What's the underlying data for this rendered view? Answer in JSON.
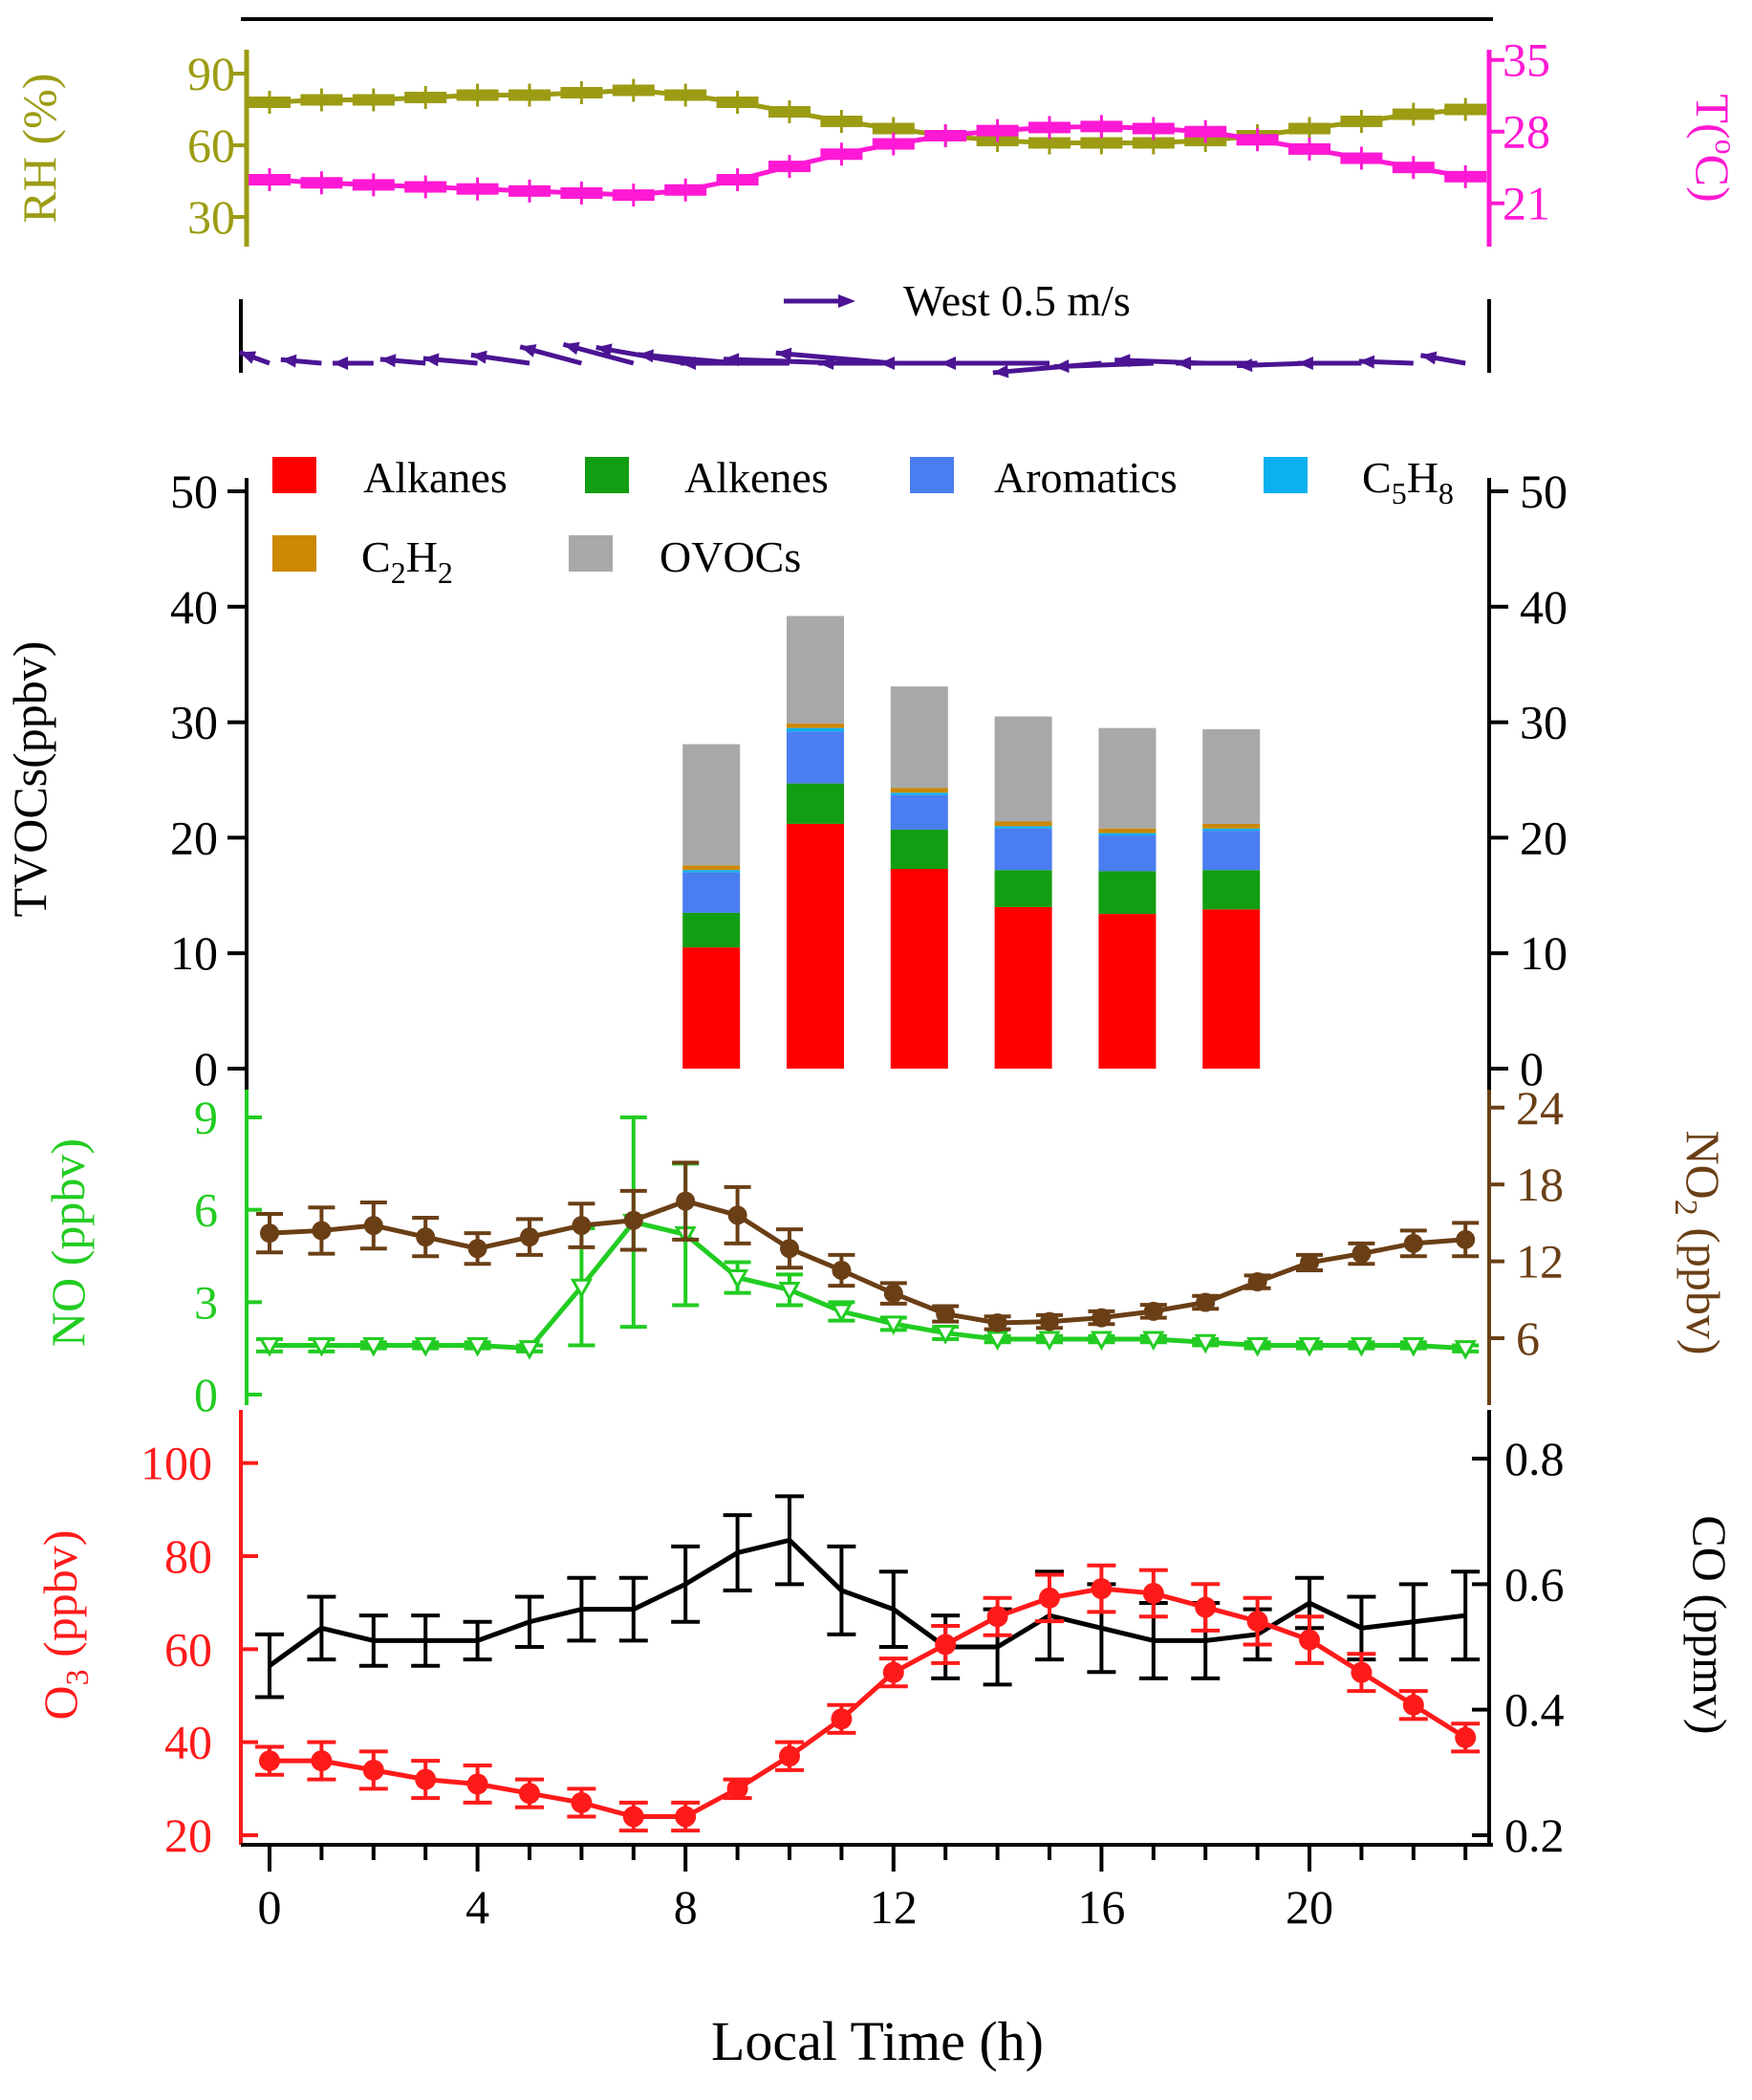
{
  "colors": {
    "rh": "#9c9c14",
    "temp": "#ff19d4",
    "wind": "#4b1493",
    "no": "#22cc22",
    "no2": "#6b3f16",
    "o3": "#ff1a1a",
    "co": "#000000",
    "alkanes": "#ff0000",
    "alkenes": "#129e12",
    "aromatics": "#4a7df0",
    "c5h8": "#0bb0f0",
    "c2h2": "#cc8800",
    "ovocs": "#a8a8a8"
  },
  "chart_data": [
    {
      "panel": "meteorology",
      "type": "line",
      "hours": [
        0,
        1,
        2,
        3,
        4,
        5,
        6,
        7,
        8,
        9,
        10,
        11,
        12,
        13,
        14,
        15,
        16,
        17,
        18,
        19,
        20,
        21,
        22,
        23
      ],
      "left_axis": {
        "label": "RH (%)",
        "ylim": [
          20,
          100
        ],
        "ticks": [
          "30",
          "60",
          "90"
        ]
      },
      "right_axis": {
        "label_main": "T(",
        "label_sup": "o",
        "label_end": "C)",
        "ylim": [
          17.33,
          36.0
        ],
        "ticks": [
          "21",
          "28",
          "35"
        ]
      },
      "series": [
        {
          "name": "RH",
          "axis": "left",
          "values": [
            78,
            79,
            79,
            80,
            81,
            81,
            82,
            83,
            81,
            78,
            74,
            70,
            67,
            64,
            62,
            61,
            61,
            61,
            62,
            64,
            67,
            70,
            73,
            75
          ]
        },
        {
          "name": "T",
          "axis": "right",
          "values": [
            23.3,
            23.0,
            22.8,
            22.6,
            22.4,
            22.2,
            22.0,
            21.8,
            22.3,
            23.3,
            24.6,
            25.8,
            26.8,
            27.6,
            28.1,
            28.4,
            28.5,
            28.3,
            28.0,
            27.2,
            26.3,
            25.4,
            24.5,
            23.6
          ]
        }
      ]
    },
    {
      "panel": "wind",
      "type": "vector",
      "legend_label": "West 0.5 m/s",
      "directions_deg_ccw_from_east": [
        160,
        175,
        180,
        175,
        175,
        172,
        165,
        165,
        170,
        175,
        180,
        178,
        175,
        180,
        180,
        180,
        185,
        182,
        178,
        180,
        182,
        180,
        178,
        170
      ],
      "speeds_ms": [
        0.35,
        0.45,
        0.45,
        0.5,
        0.6,
        0.65,
        0.7,
        0.8,
        1.0,
        1.1,
        1.2,
        1.3,
        1.3,
        1.4,
        1.3,
        1.2,
        1.2,
        1.1,
        1.0,
        0.9,
        0.8,
        0.7,
        0.6,
        0.5
      ]
    },
    {
      "panel": "tvocs",
      "type": "bar",
      "stacked": true,
      "ylabel": "TVOCs(ppbv)",
      "ylim": [
        0,
        50
      ],
      "yticks": [
        "0",
        "10",
        "20",
        "30",
        "40",
        "50"
      ],
      "bar_hours": [
        8,
        10,
        12,
        14,
        16,
        18
      ],
      "legend": [
        {
          "key": "alkanes",
          "label": "Alkanes"
        },
        {
          "key": "alkenes",
          "label": "Alkenes"
        },
        {
          "key": "aromatics",
          "label": "Aromatics"
        },
        {
          "key": "c5h8",
          "label": "C",
          "sub1": "5",
          "mid": "H",
          "sub2": "8"
        },
        {
          "key": "c2h2",
          "label": "C",
          "sub1": "2",
          "mid": "H",
          "sub2": "2"
        },
        {
          "key": "ovocs",
          "label": "OVOCs"
        }
      ],
      "series": [
        {
          "name": "Alkanes",
          "key": "alkanes",
          "values": [
            10.5,
            21.2,
            17.3,
            14.0,
            13.4,
            13.8
          ]
        },
        {
          "name": "Alkenes",
          "key": "alkenes",
          "values": [
            3.0,
            3.5,
            3.4,
            3.2,
            3.7,
            3.4
          ]
        },
        {
          "name": "Aromatics",
          "key": "aromatics",
          "values": [
            3.5,
            4.5,
            3.0,
            3.6,
            3.1,
            3.4
          ]
        },
        {
          "name": "C5H8",
          "key": "c5h8",
          "values": [
            0.2,
            0.3,
            0.2,
            0.2,
            0.2,
            0.2
          ]
        },
        {
          "name": "C2H2",
          "key": "c2h2",
          "values": [
            0.4,
            0.4,
            0.4,
            0.4,
            0.4,
            0.4
          ]
        },
        {
          "name": "OVOCs",
          "key": "ovocs",
          "values": [
            10.5,
            9.3,
            8.8,
            9.1,
            8.7,
            8.2
          ]
        }
      ]
    },
    {
      "panel": "nox",
      "type": "line",
      "hours": [
        0,
        1,
        2,
        3,
        4,
        5,
        6,
        7,
        8,
        9,
        10,
        11,
        12,
        13,
        14,
        15,
        16,
        17,
        18,
        19,
        20,
        21,
        22,
        23
      ],
      "left_axis": {
        "label": "NO (ppbv)",
        "ylim": [
          0,
          9.9
        ],
        "ticks": [
          "0",
          "3",
          "6",
          "9"
        ]
      },
      "right_axis": {
        "label_main": "NO",
        "label_sub": "2",
        "label_end": " (ppbv)",
        "ylim": [
          1.6,
          25.4
        ],
        "ticks": [
          "6",
          "12",
          "18",
          "24"
        ]
      },
      "series": [
        {
          "name": "NO",
          "axis": "left",
          "values": [
            1.6,
            1.6,
            1.6,
            1.6,
            1.6,
            1.5,
            3.5,
            5.6,
            5.2,
            3.8,
            3.4,
            2.7,
            2.3,
            2.0,
            1.8,
            1.8,
            1.8,
            1.8,
            1.7,
            1.6,
            1.6,
            1.6,
            1.6,
            1.5
          ],
          "errors": [
            0.2,
            0.2,
            0.1,
            0.1,
            0.1,
            0.1,
            1.9,
            3.4,
            2.3,
            0.5,
            0.5,
            0.3,
            0.2,
            0.2,
            0.1,
            0.1,
            0.1,
            0.1,
            0.1,
            0.1,
            0.1,
            0.1,
            0.1,
            0.1
          ]
        },
        {
          "name": "NO2",
          "axis": "right",
          "values": [
            14.2,
            14.4,
            14.8,
            13.9,
            13.0,
            13.9,
            14.8,
            15.2,
            16.7,
            15.6,
            13.0,
            11.3,
            9.5,
            7.9,
            7.2,
            7.3,
            7.6,
            8.1,
            8.8,
            10.4,
            11.9,
            12.6,
            13.4,
            13.7
          ],
          "errors": [
            1.5,
            1.8,
            1.8,
            1.5,
            1.2,
            1.4,
            1.7,
            2.3,
            3.0,
            2.2,
            1.5,
            1.2,
            0.8,
            0.6,
            0.5,
            0.5,
            0.5,
            0.5,
            0.5,
            0.5,
            0.6,
            0.8,
            1.0,
            1.3
          ]
        }
      ]
    },
    {
      "panel": "o3_co",
      "type": "line",
      "hours": [
        0,
        1,
        2,
        3,
        4,
        5,
        6,
        7,
        8,
        9,
        10,
        11,
        12,
        13,
        14,
        15,
        16,
        17,
        18,
        19,
        20,
        21,
        22,
        23
      ],
      "left_axis": {
        "label_main": "O",
        "label_sub": "3",
        "label_end": " (ppbv)",
        "ylim": [
          20,
          110
        ],
        "ticks": [
          "20",
          "40",
          "60",
          "80",
          "100"
        ]
      },
      "right_axis": {
        "label": "CO (ppmv)",
        "ylim": [
          0.2,
          0.867
        ],
        "ticks": [
          "0.2",
          "0.4",
          "0.6",
          "0.8"
        ]
      },
      "xlabel": "Local Time (h)",
      "xticks": [
        "0",
        "4",
        "8",
        "12",
        "16",
        "20"
      ],
      "series": [
        {
          "name": "O3",
          "axis": "left",
          "values": [
            36,
            36,
            34,
            32,
            31,
            29,
            27,
            24,
            24,
            30,
            37,
            45,
            55,
            61,
            67,
            71,
            73,
            72,
            69,
            66,
            62,
            55,
            48,
            41
          ],
          "errors": [
            3,
            4,
            4,
            4,
            4,
            3,
            3,
            3,
            3,
            2,
            3,
            3,
            3,
            4,
            4,
            5,
            5,
            5,
            5,
            5,
            5,
            4,
            3,
            3
          ]
        },
        {
          "name": "CO",
          "axis": "right",
          "values": [
            0.47,
            0.53,
            0.51,
            0.51,
            0.51,
            0.54,
            0.56,
            0.56,
            0.6,
            0.65,
            0.67,
            0.59,
            0.56,
            0.5,
            0.5,
            0.55,
            0.53,
            0.51,
            0.51,
            0.52,
            0.57,
            0.53,
            0.54,
            0.55
          ],
          "errors": [
            0.05,
            0.05,
            0.04,
            0.04,
            0.03,
            0.04,
            0.05,
            0.05,
            0.06,
            0.06,
            0.07,
            0.07,
            0.06,
            0.05,
            0.06,
            0.07,
            0.07,
            0.06,
            0.06,
            0.04,
            0.04,
            0.05,
            0.06,
            0.07
          ]
        }
      ]
    }
  ]
}
